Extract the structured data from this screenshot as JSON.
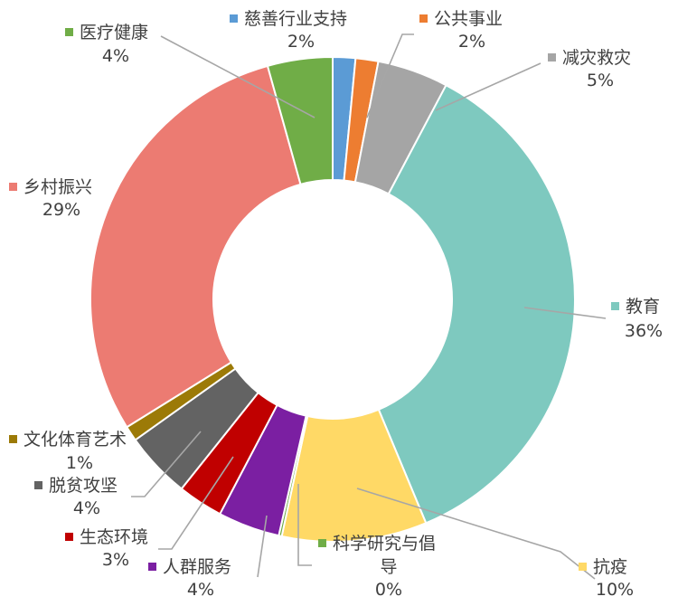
{
  "chart_data": {
    "type": "pie",
    "variant": "doughnut",
    "title": "",
    "slices": [
      {
        "name": "慈善行业支持",
        "value": 1.5,
        "label_pct": "2%",
        "color": "#5b9bd5"
      },
      {
        "name": "公共事业",
        "value": 1.5,
        "label_pct": "2%",
        "color": "#ed7d31"
      },
      {
        "name": "减灾救灾",
        "value": 4.7,
        "label_pct": "5%",
        "color": "#a5a5a5"
      },
      {
        "name": "教育",
        "value": 35.7,
        "label_pct": "36%",
        "color": "#7ec9bf"
      },
      {
        "name": "抗疫",
        "value": 9.6,
        "label_pct": "10%",
        "color": "#ffd966"
      },
      {
        "name": "科学研究与倡导",
        "value": 0.2,
        "label_pct": "0%",
        "color": "#70ad47"
      },
      {
        "name": "人群服务",
        "value": 4.1,
        "label_pct": "4%",
        "color": "#7b1fa2"
      },
      {
        "name": "生态环境",
        "value": 3.0,
        "label_pct": "3%",
        "color": "#c00000"
      },
      {
        "name": "脱贫攻坚",
        "value": 4.4,
        "label_pct": "4%",
        "color": "#636363"
      },
      {
        "name": "文化体育艺术",
        "value": 1.0,
        "label_pct": "1%",
        "color": "#9c7a07"
      },
      {
        "name": "乡村振兴",
        "value": 29.3,
        "label_pct": "29%",
        "color": "#ec7b72"
      },
      {
        "name": "医疗健康",
        "value": 4.3,
        "label_pct": "4%",
        "color": "#70ad47"
      }
    ]
  }
}
